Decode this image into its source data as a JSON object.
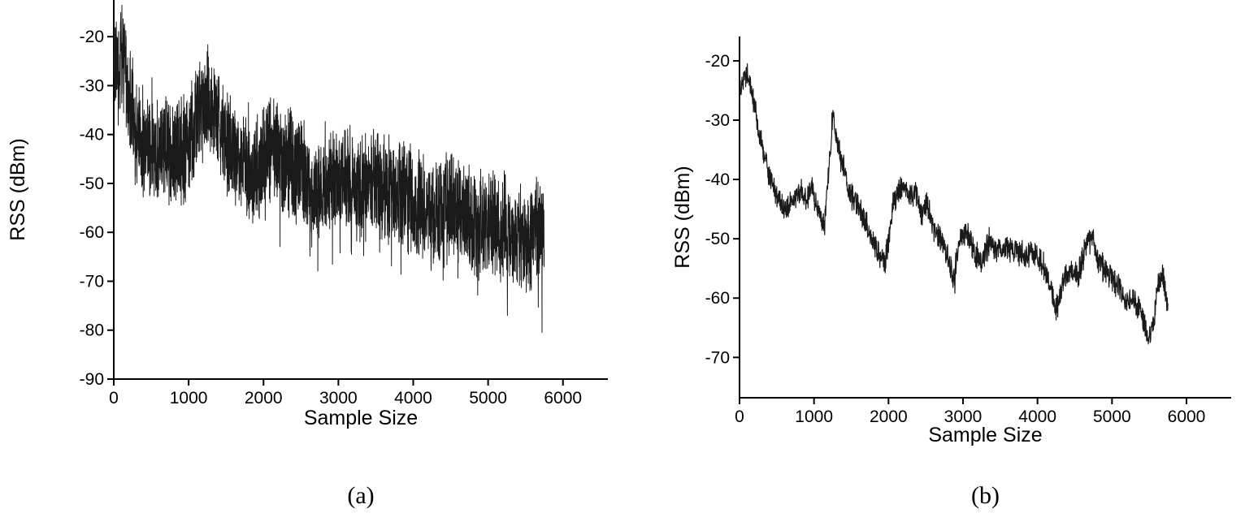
{
  "page": {
    "background": "#ffffff"
  },
  "captions": {
    "a": "(a)",
    "b": "(b)"
  },
  "chart_data": [
    {
      "id": "a",
      "type": "line",
      "title": "(a)",
      "xlabel": "Sample Size",
      "ylabel": "RSS (dBm)",
      "x_ticks": [
        0,
        1000,
        2000,
        3000,
        4000,
        5000,
        6000
      ],
      "y_ticks": [
        -20,
        -30,
        -40,
        -50,
        -60,
        -70,
        -80,
        -90
      ],
      "xlim": [
        0,
        6600
      ],
      "ylim": [
        -90,
        -12.5
      ],
      "x_data_max": 5750,
      "n_points": 2900,
      "noise_amplitude": 9,
      "spike_amplitude": 16,
      "spike_prob": 0.035,
      "seed": 42,
      "line_color": "#1a1a1a",
      "axis_color": "#000000",
      "trend": [
        [
          0,
          -24
        ],
        [
          60,
          -27
        ],
        [
          120,
          -24
        ],
        [
          200,
          -33
        ],
        [
          300,
          -39
        ],
        [
          420,
          -42
        ],
        [
          540,
          -44
        ],
        [
          660,
          -42
        ],
        [
          780,
          -43
        ],
        [
          900,
          -44
        ],
        [
          1020,
          -41
        ],
        [
          1140,
          -36
        ],
        [
          1250,
          -33
        ],
        [
          1350,
          -36
        ],
        [
          1450,
          -40
        ],
        [
          1550,
          -43
        ],
        [
          1700,
          -46
        ],
        [
          1850,
          -48
        ],
        [
          1950,
          -47
        ],
        [
          2050,
          -42
        ],
        [
          2150,
          -43
        ],
        [
          2250,
          -45
        ],
        [
          2400,
          -46
        ],
        [
          2550,
          -50
        ],
        [
          2700,
          -52
        ],
        [
          2850,
          -50
        ],
        [
          3000,
          -49
        ],
        [
          3150,
          -50
        ],
        [
          3300,
          -51
        ],
        [
          3450,
          -49
        ],
        [
          3600,
          -51
        ],
        [
          3750,
          -52
        ],
        [
          3900,
          -52
        ],
        [
          4050,
          -54
        ],
        [
          4200,
          -55
        ],
        [
          4350,
          -56
        ],
        [
          4500,
          -54
        ],
        [
          4650,
          -56
        ],
        [
          4800,
          -58
        ],
        [
          4950,
          -59
        ],
        [
          5100,
          -58
        ],
        [
          5250,
          -60
        ],
        [
          5400,
          -61
        ],
        [
          5550,
          -62
        ],
        [
          5650,
          -60
        ],
        [
          5750,
          -60
        ]
      ]
    },
    {
      "id": "b",
      "type": "line",
      "title": "(b)",
      "xlabel": "Sample Size",
      "ylabel": "RSS (dBm)",
      "x_ticks": [
        0,
        1000,
        2000,
        3000,
        4000,
        5000,
        6000
      ],
      "y_ticks": [
        -20,
        -30,
        -40,
        -50,
        -60,
        -70
      ],
      "xlim": [
        0,
        6600
      ],
      "ylim": [
        -76.8,
        -15.9
      ],
      "x_data_max": 5750,
      "n_points": 1600,
      "noise_amplitude": 1.8,
      "spike_amplitude": 3.5,
      "spike_prob": 0.02,
      "seed": 7,
      "line_color": "#1a1a1a",
      "axis_color": "#000000",
      "trend": [
        [
          0,
          -25
        ],
        [
          60,
          -23
        ],
        [
          120,
          -22
        ],
        [
          200,
          -28
        ],
        [
          280,
          -33
        ],
        [
          360,
          -37
        ],
        [
          440,
          -41
        ],
        [
          520,
          -43
        ],
        [
          600,
          -45
        ],
        [
          680,
          -44
        ],
        [
          760,
          -43
        ],
        [
          840,
          -42
        ],
        [
          900,
          -44
        ],
        [
          960,
          -41
        ],
        [
          1020,
          -44
        ],
        [
          1080,
          -46
        ],
        [
          1140,
          -48
        ],
        [
          1200,
          -38
        ],
        [
          1250,
          -29
        ],
        [
          1300,
          -33
        ],
        [
          1350,
          -36
        ],
        [
          1420,
          -39
        ],
        [
          1500,
          -43
        ],
        [
          1580,
          -44
        ],
        [
          1660,
          -46
        ],
        [
          1750,
          -49
        ],
        [
          1850,
          -52
        ],
        [
          1950,
          -54
        ],
        [
          2000,
          -50
        ],
        [
          2060,
          -44
        ],
        [
          2120,
          -42
        ],
        [
          2200,
          -41
        ],
        [
          2280,
          -43
        ],
        [
          2360,
          -42
        ],
        [
          2440,
          -46
        ],
        [
          2520,
          -44
        ],
        [
          2600,
          -48
        ],
        [
          2700,
          -50
        ],
        [
          2800,
          -53
        ],
        [
          2870,
          -57
        ],
        [
          2950,
          -50
        ],
        [
          3050,
          -49
        ],
        [
          3150,
          -52
        ],
        [
          3250,
          -54
        ],
        [
          3350,
          -50
        ],
        [
          3450,
          -52
        ],
        [
          3550,
          -51
        ],
        [
          3650,
          -52
        ],
        [
          3750,
          -52
        ],
        [
          3850,
          -53
        ],
        [
          3950,
          -52
        ],
        [
          4050,
          -54
        ],
        [
          4150,
          -57
        ],
        [
          4250,
          -62
        ],
        [
          4350,
          -57
        ],
        [
          4450,
          -55
        ],
        [
          4550,
          -56
        ],
        [
          4650,
          -51
        ],
        [
          4720,
          -49
        ],
        [
          4800,
          -53
        ],
        [
          4900,
          -55
        ],
        [
          5000,
          -57
        ],
        [
          5100,
          -58
        ],
        [
          5200,
          -61
        ],
        [
          5300,
          -60
        ],
        [
          5400,
          -63
        ],
        [
          5500,
          -67
        ],
        [
          5560,
          -64
        ],
        [
          5620,
          -57
        ],
        [
          5680,
          -56
        ],
        [
          5750,
          -62
        ]
      ]
    }
  ]
}
